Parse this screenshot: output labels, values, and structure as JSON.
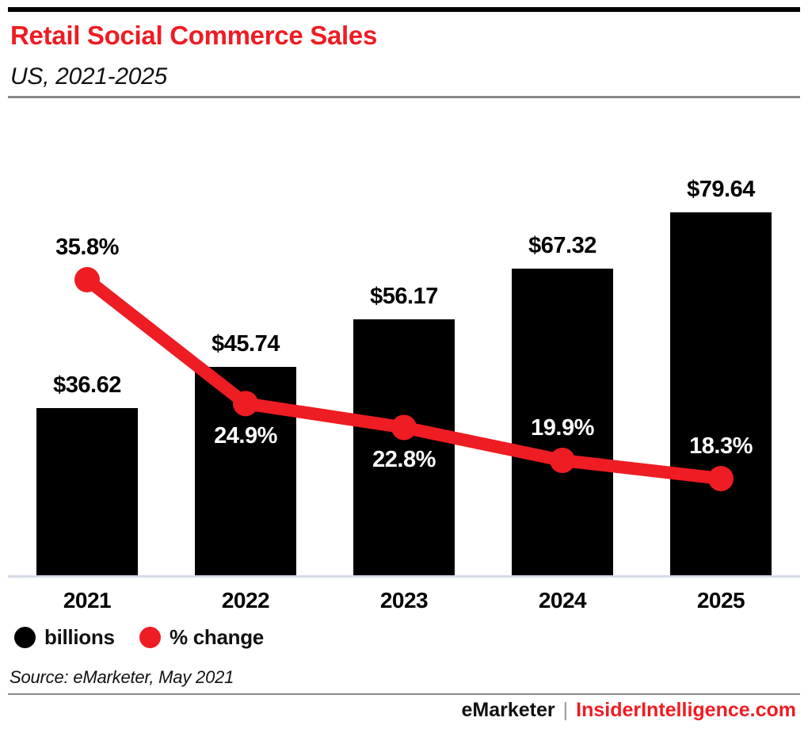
{
  "header": {
    "title": "Retail Social Commerce Sales",
    "subtitle": "US, 2021-2025"
  },
  "chart_data": {
    "type": "bar",
    "subtype": "bar-line-combo",
    "title": "Retail Social Commerce Sales",
    "subtitle": "US, 2021-2025",
    "categories": [
      "2021",
      "2022",
      "2023",
      "2024",
      "2025"
    ],
    "series": [
      {
        "name": "billions",
        "type": "bar",
        "values": [
          36.62,
          45.74,
          56.17,
          67.32,
          79.64
        ],
        "labels": [
          "$36.62",
          "$45.74",
          "$56.17",
          "$67.32",
          "$79.64"
        ],
        "color": "#000000",
        "label_color": "#000000"
      },
      {
        "name": "% change",
        "type": "line",
        "values": [
          35.8,
          24.9,
          22.8,
          19.9,
          18.3
        ],
        "labels": [
          "35.8%",
          "24.9%",
          "22.8%",
          "19.9%",
          "18.3%"
        ],
        "color": "#ee1c23",
        "label_placements": [
          "above",
          "below",
          "below",
          "above",
          "above"
        ],
        "label_colors": [
          "#000000",
          "#ffffff",
          "#ffffff",
          "#ffffff",
          "#ffffff"
        ]
      }
    ],
    "xlabel": "",
    "ylabel": "",
    "grid": false,
    "legend_position": "bottom-left"
  },
  "legend": {
    "items": [
      {
        "label": "billions",
        "color": "#000000"
      },
      {
        "label": "% change",
        "color": "#ee1c23"
      }
    ]
  },
  "source_note": "Source: eMarketer, May 2021",
  "footer": {
    "brand": "eMarketer",
    "separator": "|",
    "site": "InsiderIntelligence.com"
  },
  "colors": {
    "accent_red": "#ee1c23",
    "bar_black": "#000000",
    "axis_baseline": "#d5dbe8",
    "divider_gray": "#888888"
  }
}
